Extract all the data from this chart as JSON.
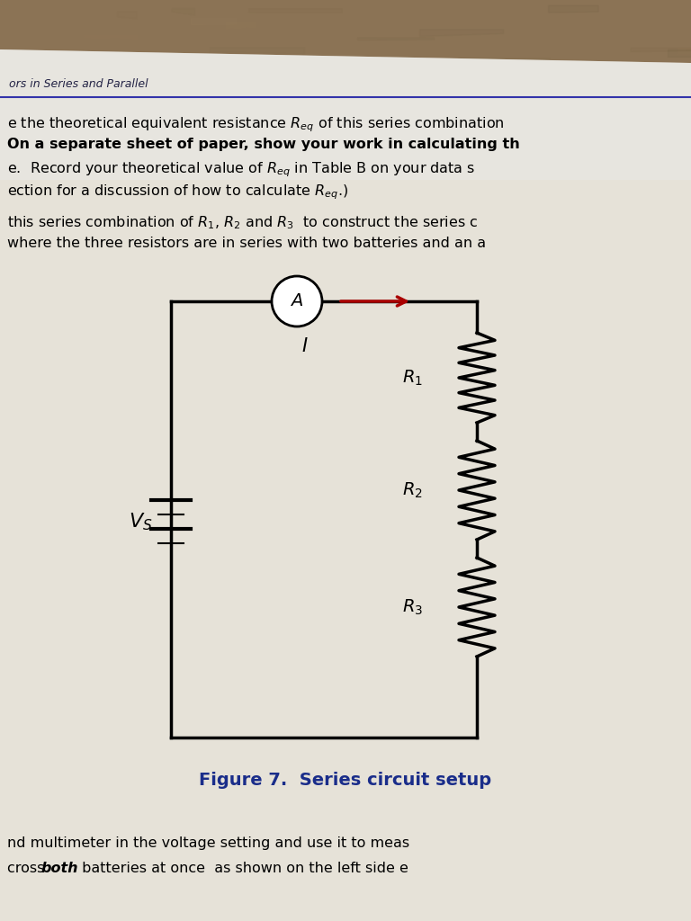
{
  "desk_color": "#8b7355",
  "paper_color": "#e8e4dc",
  "paper_color2": "#ddd9d0",
  "blue_line_color": "#3333aa",
  "title_color": "#1a2d8a",
  "header_text": "ors in Series and Parallel",
  "line1": "e the theoretical equivalent resistance $R_{eq}$ of this series combination",
  "line2_bold": "On a separate sheet of paper, show your work in calculating th",
  "line3": "e.  Record your theoretical value of $R_{eq}$ in Table B on your data s",
  "line4": "ection for a discussion of how to calculate $R_{eq}$.)",
  "line5": "this series combination of $R_1$, $R_2$ and $R_3$  to construct the series c",
  "line6": "where the three resistors are in series with two batteries and an a",
  "title_text": "Figure 7.  Series circuit setup",
  "bottom_line1": "nd multimeter in the voltage setting and use it to meas",
  "bottom_line2a": "cross ",
  "bottom_line2b": "both",
  "bottom_line2c": " batteries at once  as shown on the left side e"
}
